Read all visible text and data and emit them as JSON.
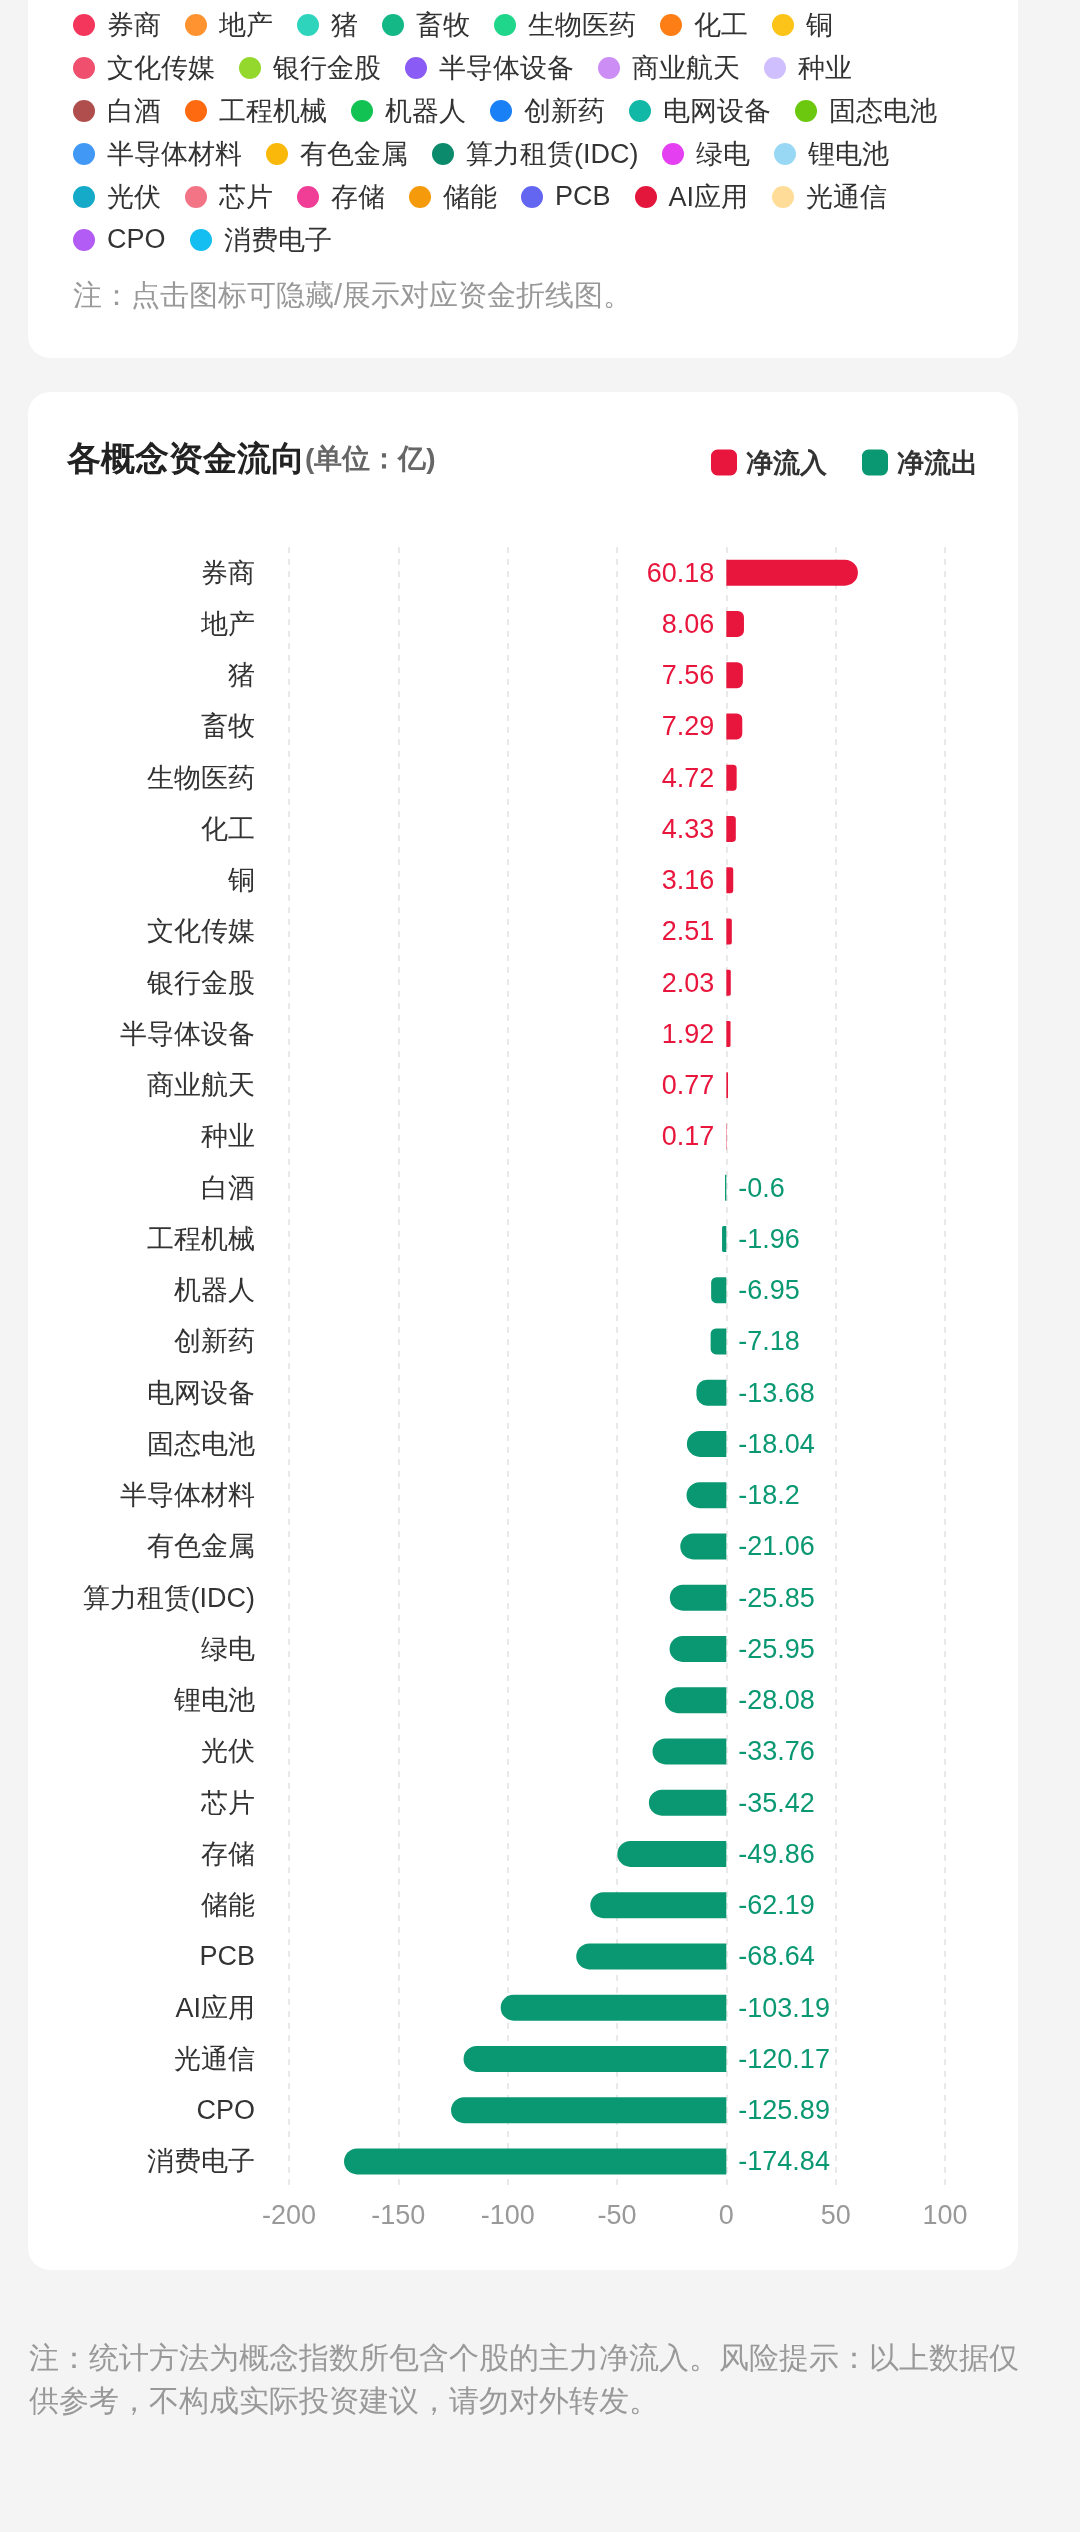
{
  "chart_data": [
    {
      "type": "other",
      "categories": [
        "券商",
        "地产",
        "猪",
        "畜牧",
        "生物医药",
        "化工",
        "铜",
        "文化传媒",
        "银行金股",
        "半导体设备",
        "商业航天",
        "种业",
        "白酒",
        "工程机械",
        "机器人",
        "创新药",
        "电网设备",
        "固态电池",
        "半导体材料",
        "有色金属",
        "算力租赁(IDC)",
        "绿电",
        "锂电池",
        "光伏",
        "芯片",
        "存储",
        "储能",
        "PCB",
        "AI应用",
        "光通信",
        "CPO",
        "消费电子"
      ],
      "colors": [
        "#f5365c",
        "#ff9330",
        "#2fd4bc",
        "#14b886",
        "#20d68a",
        "#fd7e14",
        "#fcc419",
        "#f0506e",
        "#94d82d",
        "#8a5cf5",
        "#cc8ef5",
        "#d0bfff",
        "#b04e4e",
        "#fd6a10",
        "#12c253",
        "#1a80f5",
        "#12b8a6",
        "#6bc80e",
        "#4299f5",
        "#fab90a",
        "#0c8a6c",
        "#e43ff0",
        "#99d8f5",
        "#14aac8",
        "#f27485",
        "#f03e96",
        "#f59a0a",
        "#6366f1",
        "#e3163c",
        "#ffdd99",
        "#b35cf5",
        "#14bef0"
      ],
      "annotations": [
        "注：点击图标可隐藏/展示对应资金折线图。"
      ]
    },
    {
      "type": "bar",
      "orientation": "horizontal",
      "title": "各概念资金流向",
      "subtitle": "(单位：亿)",
      "categories": [
        "券商",
        "地产",
        "猪",
        "畜牧",
        "生物医药",
        "化工",
        "铜",
        "文化传媒",
        "银行金股",
        "半导体设备",
        "商业航天",
        "种业",
        "白酒",
        "工程机械",
        "机器人",
        "创新药",
        "电网设备",
        "固态电池",
        "半导体材料",
        "有色金属",
        "算力租赁(IDC)",
        "绿电",
        "锂电池",
        "光伏",
        "芯片",
        "存储",
        "储能",
        "PCB",
        "AI应用",
        "光通信",
        "CPO",
        "消费电子"
      ],
      "series": [
        {
          "name": "净流入",
          "color": "#e8163c",
          "values": [
            60.18,
            8.06,
            7.56,
            7.29,
            4.72,
            4.33,
            3.16,
            2.51,
            2.03,
            1.92,
            0.77,
            0.17,
            null,
            null,
            null,
            null,
            null,
            null,
            null,
            null,
            null,
            null,
            null,
            null,
            null,
            null,
            null,
            null,
            null,
            null,
            null,
            null
          ]
        },
        {
          "name": "净流出",
          "color": "#0a9872",
          "values": [
            null,
            null,
            null,
            null,
            null,
            null,
            null,
            null,
            null,
            null,
            null,
            null,
            -0.6,
            -1.96,
            -6.95,
            -7.18,
            -13.68,
            -18.04,
            -18.2,
            -21.06,
            -25.85,
            -25.95,
            -28.08,
            -33.76,
            -35.42,
            -49.86,
            -62.19,
            -68.64,
            -103.19,
            -120.17,
            -125.89,
            -174.84
          ]
        }
      ],
      "xlim": [
        -200,
        100
      ],
      "xticks": [
        -200,
        -150,
        -100,
        -50,
        0,
        50,
        100
      ],
      "grid": "x",
      "legend": "top right",
      "data_labels": true,
      "annotations": [
        "注：统计方法为概念指数所包含个股的主力净流入。风险提示：以上数据仅供参考，不构成实际投资建议，请勿对外转发。"
      ]
    }
  ]
}
